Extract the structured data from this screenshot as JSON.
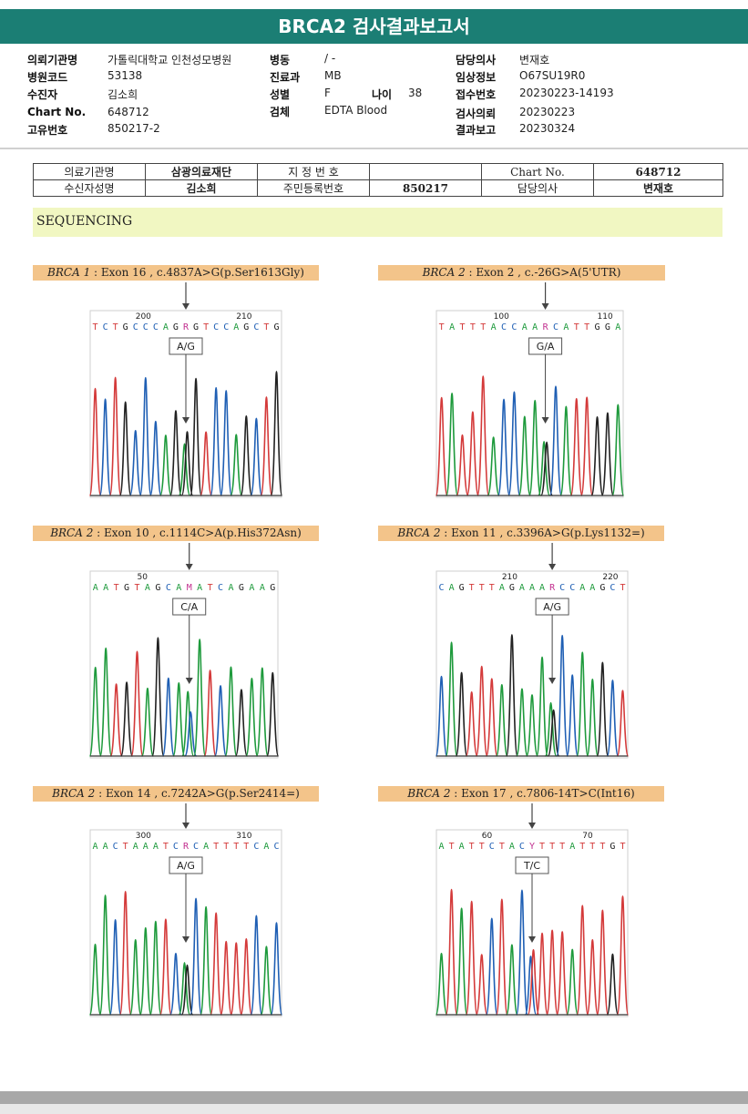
{
  "report_title": "BRCA2 검사결과보고서",
  "header": {
    "col1": [
      {
        "label": "의뢰기관명",
        "value": "가톨릭대학교 인천성모병원"
      },
      {
        "label": "병원코드",
        "value": "53138"
      },
      {
        "label": "수진자",
        "value": "김소희"
      },
      {
        "label": "Chart No.",
        "value": "648712"
      },
      {
        "label": "고유번호",
        "value": "850217-2"
      }
    ],
    "col2": [
      {
        "label": "병동",
        "value": "/ -"
      },
      {
        "label": "진료과",
        "value": "MB"
      },
      {
        "label": "성별",
        "value": "F"
      },
      {
        "label": "검체",
        "value": "EDTA Blood"
      }
    ],
    "age": {
      "label": "나이",
      "value": "38"
    },
    "col3": [
      {
        "label": "담당의사",
        "value": "변재호"
      },
      {
        "label": "임상정보",
        "value": "O67SU19R0"
      },
      {
        "label": "접수번호",
        "value": "20230223-14193"
      },
      {
        "label": "검사의뢰",
        "value": "20230223"
      },
      {
        "label": "결과보고",
        "value": "20230324"
      }
    ]
  },
  "info_table": {
    "r1": [
      "의료기관명",
      "삼광의료재단",
      "지 정 번 호",
      "",
      "Chart No.",
      "648712"
    ],
    "r2": [
      "수신자성명",
      "김소희",
      "주민등록번호",
      "850217",
      "담당의사",
      "변재호"
    ]
  },
  "section_title": "SEQUENCING",
  "panels": [
    {
      "gene": "BRCA 1",
      "desc": " : Exon 16 , c.4837A>G(p.Ser1613Gly)",
      "seq": "TCTGCCCAGRGTCCAGCTG",
      "mark_index": 9,
      "n1": "200",
      "n2": "210",
      "call": "A/G"
    },
    {
      "gene": "BRCA 2",
      "desc": " : Exon 2 , c.-26G>A(5'UTR)",
      "seq": "TATTTACCAARCATTGGA",
      "mark_index": 10,
      "n1": "100",
      "n2": "110",
      "call": "G/A"
    },
    {
      "gene": "BRCA 2",
      "desc": " : Exon 10 , c.1114C>A(p.His372Asn)",
      "seq": "AATGTAGCAMATCAGAAG",
      "mark_index": 9,
      "n1": "50",
      "n2": "",
      "call": "C/A"
    },
    {
      "gene": "BRCA 2",
      "desc": " : Exon 11 , c.3396A>G(p.Lys1132=)",
      "seq": "CAGTTTAGAAARCCAAGCT",
      "mark_index": 11,
      "n1": "210",
      "n2": "220",
      "call": "A/G"
    },
    {
      "gene": "BRCA 2",
      "desc": " : Exon 14 , c.7242A>G(p.Ser2414=)",
      "seq": "AACTAAATCRCATTTTCAC",
      "mark_index": 9,
      "n1": "300",
      "n2": "310",
      "call": "A/G"
    },
    {
      "gene": "BRCA 2",
      "desc": " : Exon 17 , c.7806-14T>C(Int16)",
      "seq": "ATATTCTACYTTTATTTGT",
      "mark_index": 9,
      "n1": "60",
      "n2": "70",
      "call": "T/C"
    }
  ],
  "base_colors": {
    "A": "#1e9a3c",
    "C": "#1f5fb4",
    "G": "#222222",
    "T": "#d43a3a",
    "N": "#c2308f"
  }
}
